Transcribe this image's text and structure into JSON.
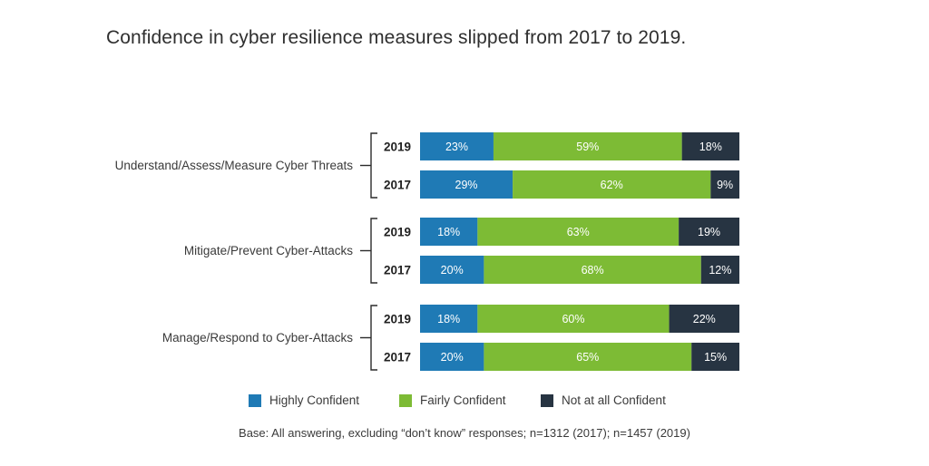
{
  "title": "Confidence in cyber resilience measures slipped from 2017 to 2019.",
  "footnote": "Base: All answering, excluding  “don’t know” responses; n=1312 (2017); n=1457 (2019)",
  "colors": {
    "Highly Confident": "#1f7ab5",
    "Fairly Confident": "#7dbb35",
    "Not at all Confident": "#273442"
  },
  "chart_data": {
    "type": "bar",
    "orientation": "horizontal",
    "stacked": true,
    "xlim": [
      0,
      100
    ],
    "units": "%",
    "groups": [
      {
        "name": "Understand/Assess/Measure Cyber Threats",
        "rows": [
          {
            "year": "2019",
            "values": [
              23,
              59,
              18
            ]
          },
          {
            "year": "2017",
            "values": [
              29,
              62,
              9
            ]
          }
        ]
      },
      {
        "name": "Mitigate/Prevent Cyber-Attacks",
        "rows": [
          {
            "year": "2019",
            "values": [
              18,
              63,
              19
            ]
          },
          {
            "year": "2017",
            "values": [
              20,
              68,
              12
            ]
          }
        ]
      },
      {
        "name": "Manage/Respond to Cyber-Attacks",
        "rows": [
          {
            "year": "2019",
            "values": [
              18,
              60,
              22
            ]
          },
          {
            "year": "2017",
            "values": [
              20,
              65,
              15
            ]
          }
        ]
      }
    ],
    "series": [
      {
        "name": "Highly Confident"
      },
      {
        "name": "Fairly Confident"
      },
      {
        "name": "Not at all Confident"
      }
    ],
    "legend_position": "bottom",
    "grid": false
  }
}
